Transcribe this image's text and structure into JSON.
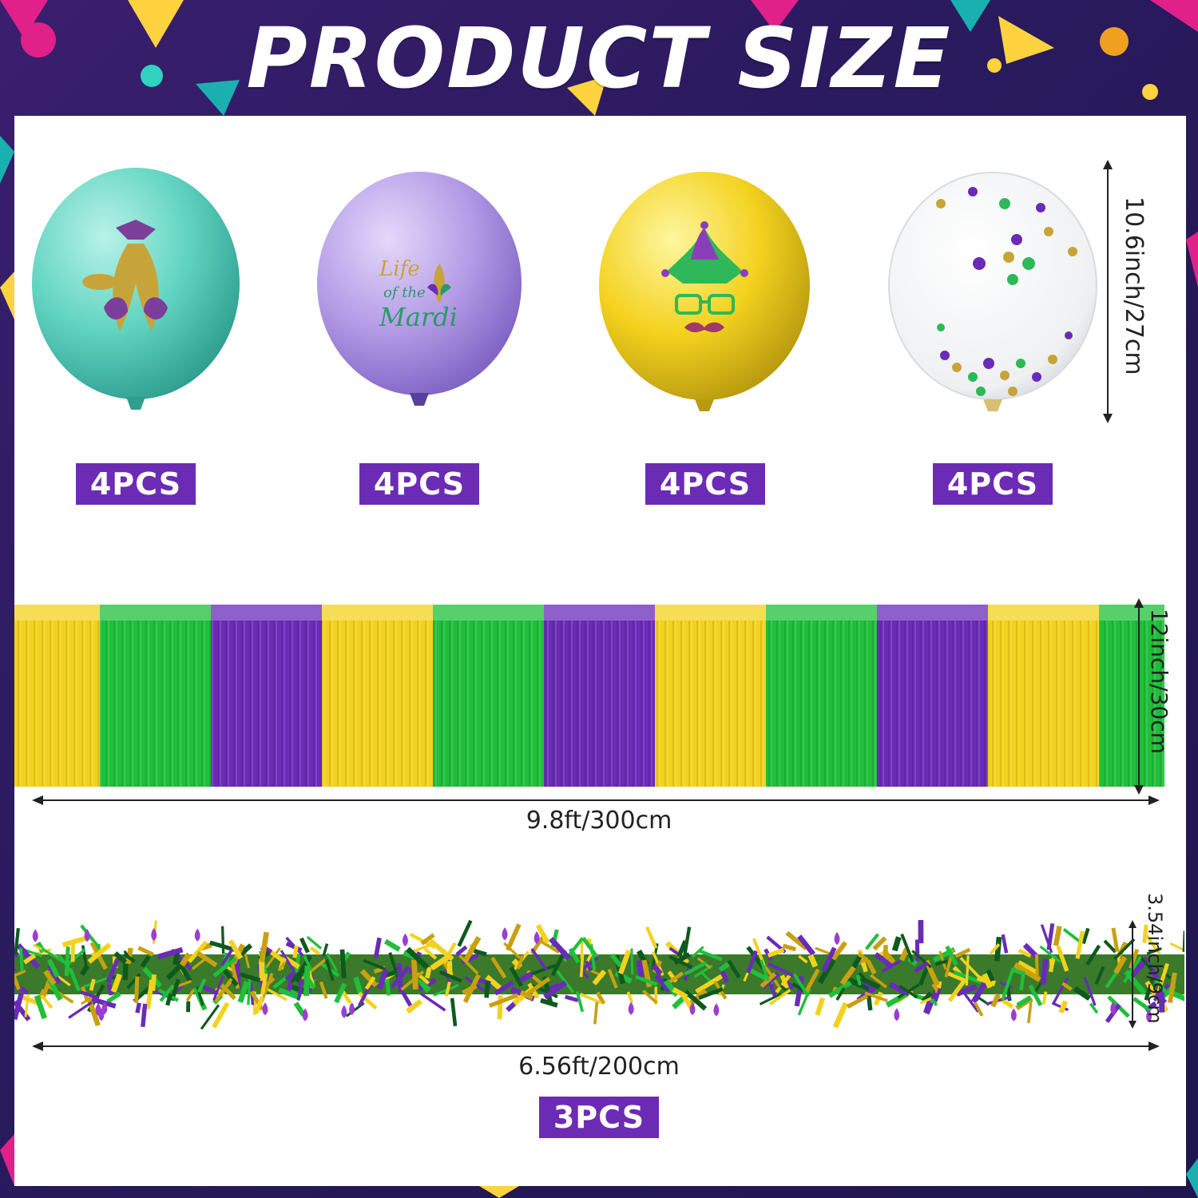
{
  "title": "PRODUCT SIZE",
  "colors": {
    "background": "#2a1a5e",
    "badge": "#6c2bb5",
    "yellow": "#f3d21e",
    "green": "#1fbf3a",
    "purple": "#6a2bb8",
    "teal": "#5fd3c0",
    "lavender": "#b49be6"
  },
  "balloons": [
    {
      "name": "teal-fleur-de-lis-balloon",
      "color": "teal",
      "count": "4PCS"
    },
    {
      "name": "purple-life-of-the-mardi-balloon",
      "color": "purple",
      "count": "4PCS",
      "print_text": [
        "Life",
        "of the",
        "Mardi"
      ]
    },
    {
      "name": "yellow-jester-face-balloon",
      "color": "yellow",
      "count": "4PCS"
    },
    {
      "name": "clear-confetti-balloon",
      "color": "clear",
      "count": "4PCS"
    }
  ],
  "balloon_size": "10.6inch/27cm",
  "fringe": {
    "height": "12inch/30cm",
    "length": "9.8ft/300cm",
    "stripe_colors": [
      "yellow",
      "green",
      "purple",
      "yellow",
      "green",
      "purple",
      "yellow",
      "green",
      "purple",
      "yellow",
      "green"
    ]
  },
  "garland": {
    "height": "3.54inch/9cm",
    "length": "6.56ft/200cm",
    "count": "3PCS"
  }
}
